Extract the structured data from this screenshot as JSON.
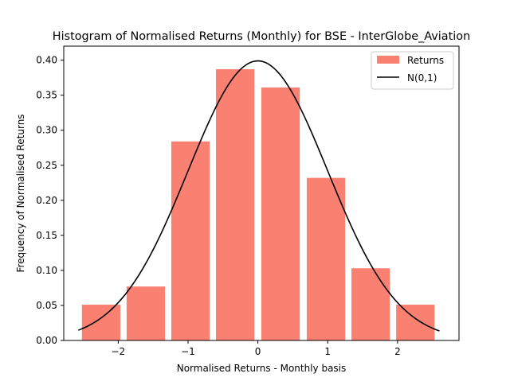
{
  "chart_data": {
    "type": "bar",
    "title": "Histogram of Normalised Returns (Monthly) for BSE - InterGlobe_Aviation",
    "xlabel": "Normalised Returns - Monthly basis",
    "ylabel": "Frequency of Normalised Returns",
    "xlim": [
      -2.78,
      2.88
    ],
    "ylim": [
      0,
      0.42
    ],
    "xticks": [
      -2,
      -1,
      0,
      1,
      2
    ],
    "xtick_labels": [
      "−2",
      "−1",
      "0",
      "1",
      "2"
    ],
    "yticks": [
      0.0,
      0.05,
      0.1,
      0.15,
      0.2,
      0.25,
      0.3,
      0.35,
      0.4
    ],
    "ytick_labels": [
      "0.00",
      "0.05",
      "0.10",
      "0.15",
      "0.20",
      "0.25",
      "0.30",
      "0.35",
      "0.40"
    ],
    "grid": false,
    "legend_position": "top-right",
    "bar_color": "#fa8072",
    "curve_color": "#000000",
    "bins": [
      {
        "x_start": -2.52,
        "x_end": -1.97,
        "value": 0.051
      },
      {
        "x_start": -1.88,
        "x_end": -1.33,
        "value": 0.077
      },
      {
        "x_start": -1.24,
        "x_end": -0.69,
        "value": 0.284
      },
      {
        "x_start": -0.6,
        "x_end": -0.05,
        "value": 0.387
      },
      {
        "x_start": 0.05,
        "x_end": 0.6,
        "value": 0.361
      },
      {
        "x_start": 0.7,
        "x_end": 1.25,
        "value": 0.232
      },
      {
        "x_start": 1.34,
        "x_end": 1.89,
        "value": 0.103
      },
      {
        "x_start": 1.98,
        "x_end": 2.53,
        "value": 0.051
      }
    ],
    "series": [
      {
        "name": "Returns",
        "type": "bar"
      },
      {
        "name": "N(0,1)",
        "type": "line",
        "function": "normal_pdf",
        "mean": 0,
        "std": 1,
        "x_range": [
          -2.57,
          2.6
        ]
      }
    ]
  }
}
